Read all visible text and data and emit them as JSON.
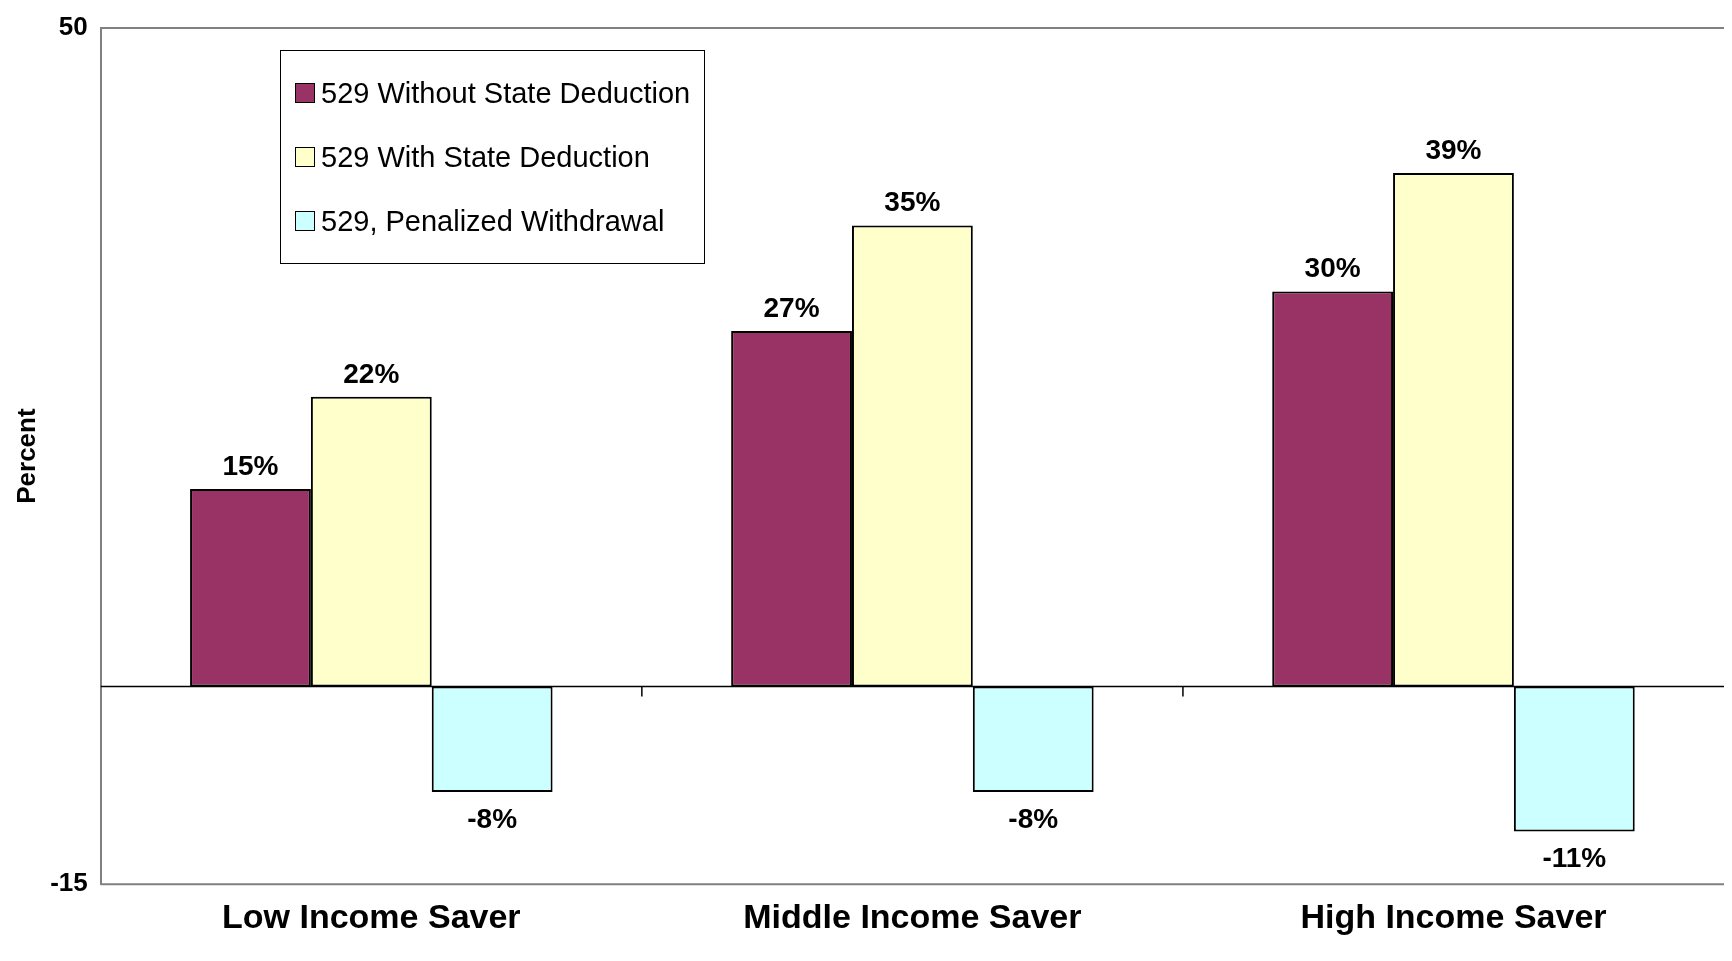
{
  "chart_data": {
    "type": "bar",
    "ylabel": "Percent",
    "categories": [
      "Low Income Saver",
      "Middle Income Saver",
      "High Income Saver"
    ],
    "series": [
      {
        "name": "529 Without State Deduction",
        "color": "#993366",
        "values": [
          15,
          27,
          30
        ],
        "value_labels": [
          "15%",
          "27%",
          "30%"
        ]
      },
      {
        "name": "529 With State Deduction",
        "color": "#ffffcc",
        "values": [
          22,
          35,
          39
        ],
        "value_labels": [
          "22%",
          "35%",
          "39%"
        ]
      },
      {
        "name": "529, Penalized Withdrawal",
        "color": "#ccffff",
        "values": [
          -8,
          -8,
          -11
        ],
        "value_labels": [
          "-8%",
          "-8%",
          "-11%"
        ]
      }
    ],
    "ylim": [
      -15,
      50
    ],
    "yticks": [
      50,
      -15
    ],
    "legend": "top left"
  }
}
